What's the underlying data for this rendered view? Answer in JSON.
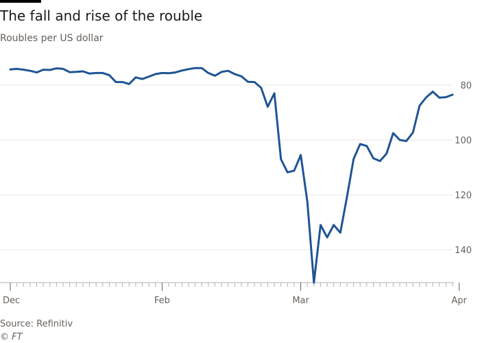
{
  "title": "The fall and rise of the rouble",
  "subtitle": "Roubles per US dollar",
  "source": "Source: Refinitiv",
  "credit": "© FT",
  "colors": {
    "line": "#1f5494",
    "grid": "#e8e6e4",
    "axis": "#b3b0ad",
    "text": "#66605c"
  },
  "chart_data": {
    "type": "line",
    "title": "The fall and rise of the rouble",
    "ylabel": "Roubles per US dollar",
    "y_inverted": true,
    "y_axis_side": "right",
    "ylim": [
      71,
      152
    ],
    "yticks": [
      80,
      100,
      120,
      140
    ],
    "xticks": [
      {
        "label": "Dec",
        "index": 0
      },
      {
        "label": "Feb",
        "index": 23
      },
      {
        "label": "Mar",
        "index": 44
      },
      {
        "label": "Apr",
        "index": 68
      }
    ],
    "series": [
      {
        "values": [
          74.3,
          74.1,
          74.4,
          74.8,
          75.4,
          74.4,
          74.5,
          73.9,
          74.1,
          75.3,
          75.2,
          75.0,
          75.8,
          75.6,
          75.6,
          76.4,
          78.9,
          78.9,
          79.6,
          77.2,
          77.8,
          76.9,
          76.0,
          75.6,
          75.7,
          75.4,
          74.7,
          74.2,
          73.8,
          73.8,
          75.6,
          76.6,
          75.2,
          74.8,
          76.0,
          76.8,
          78.8,
          78.9,
          81.0,
          87.9,
          83.0,
          107.0,
          111.8,
          111.2,
          105.5,
          122.5,
          152.0,
          131.0,
          135.5,
          131.0,
          133.8,
          120.8,
          107.0,
          101.5,
          102.2,
          106.7,
          107.7,
          105.0,
          97.5,
          100.0,
          100.4,
          97.3,
          87.5,
          84.5,
          82.4,
          84.6,
          84.4,
          83.5
        ]
      }
    ],
    "grid": true
  }
}
